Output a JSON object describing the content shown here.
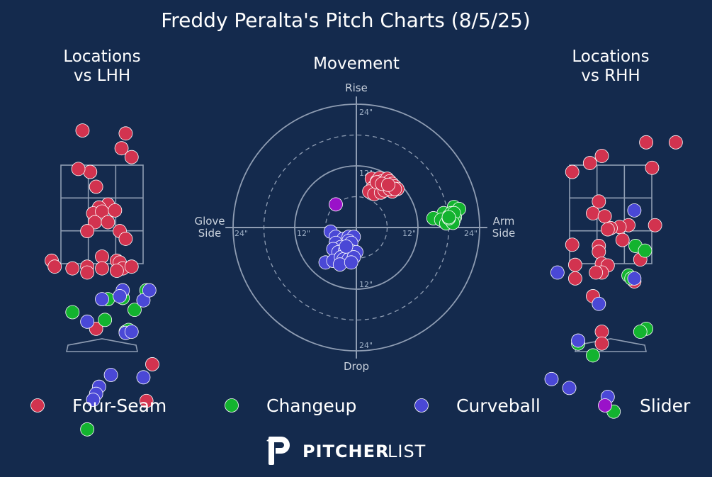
{
  "title": "Freddy Peralta's Pitch Charts (8/5/25)",
  "colors": {
    "background": "#142a4d",
    "Four-Seam": "#d2334f",
    "Changeup": "#13b32f",
    "Curveball": "#4a48d6",
    "Slider": "#9a12c9",
    "lines": "#8f9db3"
  },
  "brand": {
    "pitcher": "PITCHER",
    "list": "LIST"
  },
  "chart_data": [
    {
      "type": "scatter",
      "title": "Locations\nvs LHH",
      "title_lines": [
        "Locations",
        "vs LHH"
      ],
      "strike_zone": "3x3 grid",
      "series": [
        {
          "name": "Four-Seam",
          "points": [
            [
              -0.33,
              3.75
            ],
            [
              0.4,
              3.7
            ],
            [
              0.33,
              3.45
            ],
            [
              0.5,
              3.3
            ],
            [
              -0.2,
              3.05
            ],
            [
              -0.4,
              3.1
            ],
            [
              -0.1,
              2.8
            ],
            [
              0.1,
              2.5
            ],
            [
              -0.05,
              2.45
            ],
            [
              -0.15,
              2.35
            ],
            [
              0.0,
              2.38
            ],
            [
              0.22,
              2.4
            ],
            [
              -0.12,
              2.2
            ],
            [
              0.1,
              2.2
            ],
            [
              0.3,
              2.05
            ],
            [
              -0.25,
              2.05
            ],
            [
              0.4,
              1.92
            ],
            [
              0.25,
              1.55
            ],
            [
              0.0,
              1.62
            ],
            [
              -0.5,
              1.42
            ],
            [
              -0.85,
              1.55
            ],
            [
              -0.8,
              1.45
            ],
            [
              -0.25,
              1.45
            ],
            [
              0.0,
              1.42
            ],
            [
              0.3,
              1.52
            ],
            [
              0.35,
              1.42
            ],
            [
              0.5,
              1.45
            ],
            [
              0.25,
              1.38
            ],
            [
              -0.25,
              1.35
            ],
            [
              -0.1,
              0.4
            ],
            [
              0.85,
              -0.2
            ],
            [
              0.75,
              -0.82
            ]
          ]
        },
        {
          "name": "Changeup",
          "points": [
            [
              0.1,
              0.9
            ],
            [
              0.35,
              0.92
            ],
            [
              -0.5,
              0.68
            ],
            [
              0.55,
              0.72
            ],
            [
              0.05,
              0.55
            ],
            [
              0.4,
              0.35
            ],
            [
              0.45,
              0.38
            ],
            [
              -0.25,
              -1.3
            ],
            [
              0.75,
              1.05
            ]
          ]
        },
        {
          "name": "Curveball",
          "points": [
            [
              0.35,
              1.05
            ],
            [
              0.7,
              0.88
            ],
            [
              0.8,
              1.05
            ],
            [
              0.3,
              0.95
            ],
            [
              -0.25,
              0.52
            ],
            [
              0.0,
              0.9
            ],
            [
              0.4,
              0.33
            ],
            [
              0.15,
              -0.38
            ],
            [
              0.7,
              -0.42
            ],
            [
              -0.05,
              -0.58
            ],
            [
              -0.1,
              -0.7
            ],
            [
              -0.15,
              -0.8
            ],
            [
              0.5,
              0.35
            ]
          ]
        },
        {
          "name": "Slider",
          "points": []
        }
      ]
    },
    {
      "type": "scatter",
      "subtype": "polar movement",
      "title": "Movement",
      "axis_labels": {
        "top": "Rise",
        "bottom": "Drop",
        "left": "Glove\nSide",
        "right": "Arm\nSide"
      },
      "left_label_lines": [
        "Glove",
        "Side"
      ],
      "right_label_lines": [
        "Arm",
        "Side"
      ],
      "rings": [
        "12\"",
        "24\""
      ],
      "ring_values": [
        6,
        12,
        18,
        24
      ],
      "units": "inches",
      "series": [
        {
          "name": "Four-Seam",
          "points": [
            [
              3.0,
              9.5
            ],
            [
              4.0,
              9.0
            ],
            [
              4.5,
              9.6
            ],
            [
              5.0,
              9.0
            ],
            [
              6.0,
              9.5
            ],
            [
              6.5,
              9.0
            ],
            [
              7.0,
              8.5
            ],
            [
              7.5,
              8.0
            ],
            [
              8.0,
              7.5
            ],
            [
              5.5,
              8.0
            ],
            [
              4.5,
              8.0
            ],
            [
              3.5,
              8.0
            ],
            [
              3.0,
              7.5
            ],
            [
              4.0,
              7.0
            ],
            [
              5.0,
              7.0
            ],
            [
              6.0,
              7.5
            ],
            [
              7.0,
              7.0
            ],
            [
              2.5,
              7.0
            ],
            [
              3.5,
              6.5
            ],
            [
              4.8,
              6.8
            ],
            [
              5.5,
              7.2
            ],
            [
              6.5,
              7.5
            ],
            [
              7.5,
              7.5
            ],
            [
              4.0,
              8.8
            ],
            [
              5.0,
              8.5
            ],
            [
              6.2,
              8.3
            ]
          ]
        },
        {
          "name": "Changeup",
          "points": [
            [
              19.0,
              4.0
            ],
            [
              20.0,
              3.6
            ],
            [
              17.0,
              2.8
            ],
            [
              18.0,
              2.2
            ],
            [
              18.5,
              2.8
            ],
            [
              19.2,
              2.0
            ],
            [
              18.0,
              1.2
            ],
            [
              19.0,
              1.5
            ],
            [
              15.0,
              1.8
            ],
            [
              19.0,
              2.8
            ],
            [
              16.5,
              1.5
            ],
            [
              17.5,
              0.8
            ],
            [
              18.8,
              0.9
            ],
            [
              18.0,
              1.8
            ],
            [
              18.0,
              2.0
            ]
          ]
        },
        {
          "name": "Curveball",
          "points": [
            [
              -5.0,
              -0.8
            ],
            [
              -4.0,
              -1.8
            ],
            [
              -2.5,
              -2.2
            ],
            [
              -1.5,
              -1.8
            ],
            [
              -0.5,
              -1.8
            ],
            [
              -1.5,
              -2.6
            ],
            [
              -4.0,
              -3.0
            ],
            [
              -3.0,
              -3.8
            ],
            [
              -2.0,
              -3.8
            ],
            [
              -1.0,
              -3.0
            ],
            [
              -4.5,
              -4.2
            ],
            [
              -3.5,
              -4.8
            ],
            [
              -2.2,
              -4.5
            ],
            [
              -1.0,
              -4.6
            ],
            [
              0.0,
              -4.8
            ],
            [
              -6.0,
              -6.8
            ],
            [
              -4.5,
              -6.5
            ],
            [
              -3.0,
              -5.8
            ],
            [
              -2.5,
              -6.2
            ],
            [
              -1.5,
              -6.2
            ],
            [
              -0.5,
              -5.8
            ],
            [
              -3.2,
              -7.2
            ],
            [
              -1.0,
              -6.8
            ],
            [
              -2.0,
              -3.7
            ]
          ]
        },
        {
          "name": "Slider",
          "points": [
            [
              -4.0,
              4.5
            ]
          ]
        }
      ]
    },
    {
      "type": "scatter",
      "title": "Locations\nvs RHH",
      "title_lines": [
        "Locations",
        "vs RHH"
      ],
      "strike_zone": "3x3 grid",
      "series": [
        {
          "name": "Four-Seam",
          "points": [
            [
              0.6,
              3.55
            ],
            [
              1.1,
              3.55
            ],
            [
              -0.15,
              3.32
            ],
            [
              -0.35,
              3.2
            ],
            [
              0.7,
              3.12
            ],
            [
              -0.65,
              3.05
            ],
            [
              -0.2,
              2.55
            ],
            [
              -0.3,
              2.35
            ],
            [
              -0.1,
              2.3
            ],
            [
              0.3,
              2.15
            ],
            [
              0.15,
              2.12
            ],
            [
              0.0,
              2.1
            ],
            [
              -0.05,
              2.08
            ],
            [
              0.75,
              2.15
            ],
            [
              0.2,
              1.9
            ],
            [
              -0.65,
              1.82
            ],
            [
              -0.2,
              1.8
            ],
            [
              -0.2,
              1.7
            ],
            [
              -0.15,
              1.5
            ],
            [
              -0.6,
              1.48
            ],
            [
              -0.05,
              1.47
            ],
            [
              -0.15,
              1.35
            ],
            [
              0.5,
              1.57
            ],
            [
              -0.25,
              1.35
            ],
            [
              -0.6,
              1.25
            ],
            [
              0.4,
              1.2
            ],
            [
              -0.3,
              0.95
            ],
            [
              -0.15,
              0.35
            ],
            [
              -0.15,
              0.15
            ]
          ]
        },
        {
          "name": "Changeup",
          "points": [
            [
              0.42,
              1.8
            ],
            [
              0.58,
              1.72
            ],
            [
              0.3,
              1.3
            ],
            [
              0.35,
              1.25
            ],
            [
              0.6,
              0.4
            ],
            [
              0.5,
              0.35
            ],
            [
              -0.55,
              0.15
            ],
            [
              -0.3,
              -0.05
            ],
            [
              0.05,
              -1.0
            ]
          ]
        },
        {
          "name": "Curveball",
          "points": [
            [
              0.4,
              2.4
            ],
            [
              -0.9,
              1.35
            ],
            [
              0.4,
              1.25
            ],
            [
              -0.2,
              0.82
            ],
            [
              -0.55,
              0.2
            ],
            [
              -1.0,
              -0.45
            ],
            [
              -0.7,
              -0.6
            ],
            [
              -0.05,
              -0.75
            ]
          ]
        },
        {
          "name": "Slider",
          "points": []
        }
      ]
    }
  ],
  "legend": [
    {
      "name": "Four-Seam"
    },
    {
      "name": "Changeup"
    },
    {
      "name": "Curveball"
    },
    {
      "name": "Slider"
    }
  ],
  "legend_placement": "bottom"
}
